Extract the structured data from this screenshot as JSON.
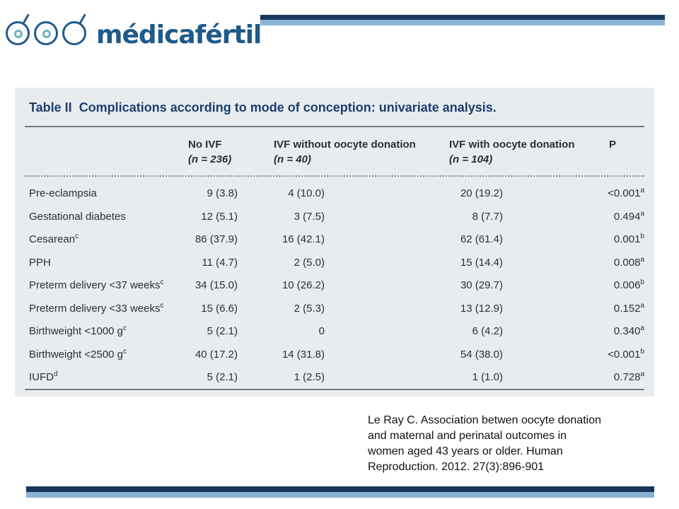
{
  "logo": {
    "text": "médicafértil"
  },
  "colors": {
    "brand_dark": "#17365d",
    "brand_light": "#8ab4d6",
    "table_title": "#1b3f6e",
    "panel_bg": "#e9ecef"
  },
  "table": {
    "label": "Table II",
    "caption": "Complications according to mode of conception: univariate analysis.",
    "headers": {
      "no_ivf": {
        "line1": "No IVF",
        "line2": "(n = 236)"
      },
      "ivf_without": {
        "line1": "IVF without oocyte donation",
        "line2": "(n = 40)"
      },
      "ivf_with": {
        "line1": "IVF with oocyte donation",
        "line2": "(n = 104)"
      },
      "p": "P"
    },
    "rows": [
      {
        "label": "Pre-eclampsia",
        "label_sup": "",
        "no_ivf": "9 (3.8)",
        "ivf_without": "4 (10.0)",
        "ivf_with": "20 (19.2)",
        "p": "<0.001",
        "p_sup": "a"
      },
      {
        "label": "Gestational diabetes",
        "label_sup": "",
        "no_ivf": "12 (5.1)",
        "ivf_without": "3 (7.5)",
        "ivf_with": "8 (7.7)",
        "p": "0.494",
        "p_sup": "a"
      },
      {
        "label": "Cesarean",
        "label_sup": "c",
        "no_ivf": "86 (37.9)",
        "ivf_without": "16 (42.1)",
        "ivf_with": "62 (61.4)",
        "p": "0.001",
        "p_sup": "b"
      },
      {
        "label": "PPH",
        "label_sup": "",
        "no_ivf": "11 (4.7)",
        "ivf_without": "2 (5.0)",
        "ivf_with": "15 (14.4)",
        "p": "0.008",
        "p_sup": "a"
      },
      {
        "label": "Preterm delivery <37 weeks",
        "label_sup": "c",
        "no_ivf": "34 (15.0)",
        "ivf_without": "10 (26.2)",
        "ivf_with": "30 (29.7)",
        "p": "0.006",
        "p_sup": "b"
      },
      {
        "label": "Preterm delivery <33 weeks",
        "label_sup": "c",
        "no_ivf": "15 (6.6)",
        "ivf_without": "2 (5.3)",
        "ivf_with": "13 (12.9)",
        "p": "0.152",
        "p_sup": "a"
      },
      {
        "label": "Birthweight <1000 g",
        "label_sup": "c",
        "no_ivf": "5 (2.1)",
        "ivf_without": "0",
        "ivf_with": "6 (4.2)",
        "p": "0.340",
        "p_sup": "a"
      },
      {
        "label": "Birthweight <2500 g",
        "label_sup": "c",
        "no_ivf": "40 (17.2)",
        "ivf_without": "14 (31.8)",
        "ivf_with": "54 (38.0)",
        "p": "<0.001",
        "p_sup": "b"
      },
      {
        "label": "IUFD",
        "label_sup": "d",
        "no_ivf": "5 (2.1)",
        "ivf_without": "1 (2.5)",
        "ivf_with": "1 (1.0)",
        "p": "0.728",
        "p_sup": "a"
      }
    ]
  },
  "citation": {
    "lines": [
      "Le Ray C. Association betwen oocyte donation",
      "and  maternal and perinatal outcomes in",
      "women aged 43 years or older. Human",
      "Reproduction. 2012. 27(3):896-901"
    ]
  }
}
